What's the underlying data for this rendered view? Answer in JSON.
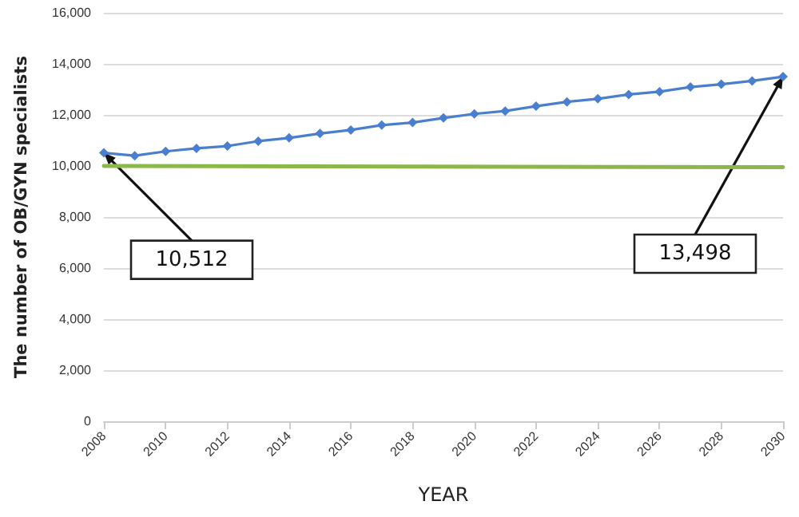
{
  "chart_data": {
    "type": "line",
    "xlabel": "YEAR",
    "ylabel": "The number of OB/GYN specialists",
    "xlim": [
      2008,
      2030
    ],
    "xticks": [
      2008,
      2010,
      2012,
      2014,
      2016,
      2018,
      2020,
      2022,
      2024,
      2026,
      2028,
      2030
    ],
    "ylim": [
      0,
      16000
    ],
    "yticks": [
      {
        "value": 0,
        "label": "0"
      },
      {
        "value": 2000,
        "label": "2,000"
      },
      {
        "value": 4000,
        "label": "4,000"
      },
      {
        "value": 6000,
        "label": "6,000"
      },
      {
        "value": 8000,
        "label": "8,000"
      },
      {
        "value": 10000,
        "label": "10,000"
      },
      {
        "value": 12000,
        "label": "12,000"
      },
      {
        "value": 14000,
        "label": "14,000"
      },
      {
        "value": 16000,
        "label": "16,000"
      }
    ],
    "grid": "y",
    "series": [
      {
        "color": "#4a7fcf",
        "marker": "diamond",
        "x": [
          2008,
          2009,
          2010,
          2011,
          2012,
          2013,
          2014,
          2015,
          2016,
          2017,
          2018,
          2019,
          2020,
          2021,
          2022,
          2023,
          2024,
          2025,
          2026,
          2027,
          2028,
          2029,
          2030
        ],
        "values": [
          10512,
          10400,
          10570,
          10690,
          10780,
          10970,
          11100,
          11270,
          11410,
          11600,
          11700,
          11880,
          12040,
          12150,
          12340,
          12510,
          12630,
          12800,
          12910,
          13090,
          13200,
          13330,
          13498
        ]
      },
      {
        "color": "#8cb84a",
        "marker": "none",
        "x": [
          2008,
          2030
        ],
        "values": [
          10000,
          9950
        ]
      }
    ],
    "annotations": [
      {
        "text": "10,512",
        "x": 2008,
        "y": 10512
      },
      {
        "text": "13,498",
        "x": 2030,
        "y": 13498
      }
    ]
  }
}
